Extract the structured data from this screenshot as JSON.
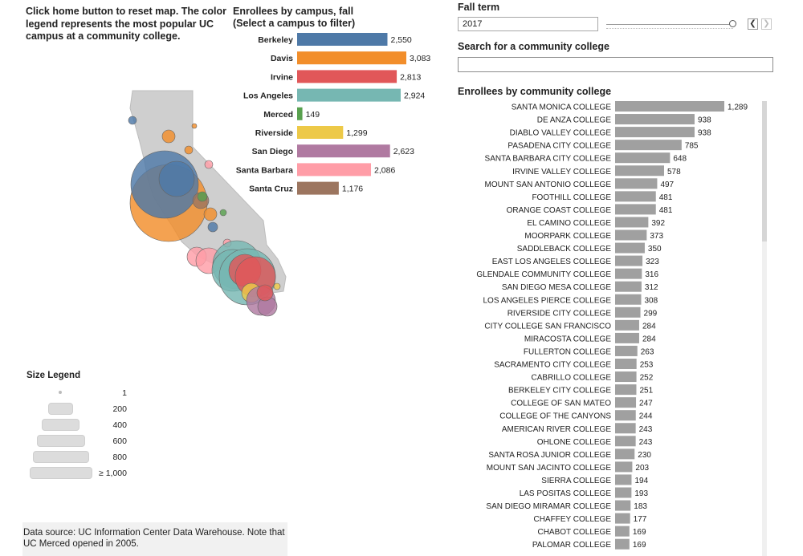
{
  "instructions": "Click home button to reset map. The color legend represents the most popular UC campus at a community college.",
  "campus_panel": {
    "title_line1": "Enrollees by campus, fall",
    "title_line2": "(Select a campus to filter)"
  },
  "fall_term": {
    "label": "Fall term",
    "value": "2017",
    "prev_icon": "chevron-left-icon",
    "next_icon": "chevron-right-icon"
  },
  "search": {
    "label": "Search for a community college",
    "value": ""
  },
  "cc_panel": {
    "title": "Enrollees by community college"
  },
  "size_legend": {
    "title": "Size Legend",
    "items": [
      "1",
      "200",
      "400",
      "600",
      "800",
      "≥ 1,000"
    ]
  },
  "footnote": "Data source: UC Information Center Data Warehouse. Note that UC Merced opened in 2005.",
  "colors": {
    "Berkeley": "#4e79a7",
    "Davis": "#f28e2b",
    "Irvine": "#e15759",
    "Los Angeles": "#76b7b2",
    "Merced": "#59a14f",
    "Riverside": "#edc948",
    "San Diego": "#b07aa1",
    "Santa Barbara": "#ff9da7",
    "Santa Cruz": "#9c755f",
    "cc_bar": "#a0a0a0",
    "map_land": "#cfcfcf"
  },
  "chart_data": [
    {
      "type": "bar",
      "orientation": "horizontal",
      "title": "Enrollees by campus, fall (Select a campus to filter)",
      "categories": [
        "Berkeley",
        "Davis",
        "Irvine",
        "Los Angeles",
        "Merced",
        "Riverside",
        "San Diego",
        "Santa Barbara",
        "Santa Cruz"
      ],
      "values": [
        2550,
        3083,
        2813,
        2924,
        149,
        1299,
        2623,
        2086,
        1176
      ],
      "labels": [
        "2,550",
        "3,083",
        "2,813",
        "2,924",
        "149",
        "1,299",
        "2,623",
        "2,086",
        "1,176"
      ],
      "xlim": [
        0,
        3083
      ],
      "grid": false
    },
    {
      "type": "bar",
      "orientation": "horizontal",
      "title": "Enrollees by community college",
      "categories": [
        "SANTA MONICA COLLEGE",
        "DE ANZA COLLEGE",
        "DIABLO VALLEY COLLEGE",
        "PASADENA CITY COLLEGE",
        "SANTA BARBARA CITY COLLEGE",
        "IRVINE VALLEY COLLEGE",
        "MOUNT SAN ANTONIO COLLEGE",
        "FOOTHILL COLLEGE",
        "ORANGE COAST COLLEGE",
        "EL CAMINO COLLEGE",
        "MOORPARK COLLEGE",
        "SADDLEBACK COLLEGE",
        "EAST LOS ANGELES COLLEGE",
        "GLENDALE COMMUNITY COLLEGE",
        "SAN DIEGO MESA COLLEGE",
        "LOS ANGELES PIERCE COLLEGE",
        "RIVERSIDE CITY COLLEGE",
        "CITY COLLEGE SAN FRANCISCO",
        "MIRACOSTA COLLEGE",
        "FULLERTON COLLEGE",
        "SACRAMENTO CITY COLLEGE",
        "CABRILLO COLLEGE",
        "BERKELEY CITY COLLEGE",
        "COLLEGE OF SAN MATEO",
        "COLLEGE OF THE CANYONS",
        "AMERICAN RIVER COLLEGE",
        "OHLONE COLLEGE",
        "SANTA ROSA JUNIOR COLLEGE",
        "MOUNT SAN JACINTO COLLEGE",
        "SIERRA COLLEGE",
        "LAS POSITAS COLLEGE",
        "SAN DIEGO MIRAMAR COLLEGE",
        "CHAFFEY COLLEGE",
        "CHABOT COLLEGE",
        "PALOMAR COLLEGE"
      ],
      "values": [
        1289,
        938,
        938,
        785,
        648,
        578,
        497,
        481,
        481,
        392,
        373,
        350,
        323,
        316,
        312,
        308,
        299,
        284,
        284,
        263,
        253,
        252,
        251,
        247,
        244,
        243,
        243,
        230,
        203,
        194,
        193,
        183,
        177,
        169,
        169
      ],
      "labels": [
        "1,289",
        "938",
        "938",
        "785",
        "648",
        "578",
        "497",
        "481",
        "481",
        "392",
        "373",
        "350",
        "323",
        "316",
        "312",
        "308",
        "299",
        "284",
        "284",
        "263",
        "253",
        "252",
        "251",
        "247",
        "244",
        "243",
        "243",
        "230",
        "203",
        "194",
        "193",
        "183",
        "177",
        "169",
        "169"
      ],
      "xlim": [
        0,
        1289
      ],
      "grid": false
    }
  ]
}
